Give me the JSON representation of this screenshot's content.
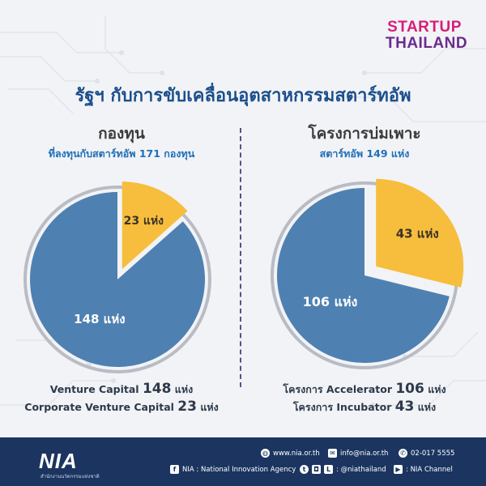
{
  "brand": {
    "logo_line1": "STARTUP",
    "logo_line2": "THAILAND"
  },
  "title": "รัฐฯ กับการขับเคลื่อนอุตสาหกรรมสตาร์ทอัพ",
  "colors": {
    "title": "#1c4f8c",
    "pie_main": "#4f80b2",
    "pie_slice": "#f7bd3c",
    "ring": "#b9bcc4",
    "footer_bg": "#1b3560"
  },
  "chart_data": [
    {
      "type": "pie",
      "title": "กองทุน",
      "subtitle": "ที่ลงทุนกับสตาร์ทอัพ 171 กองทุน",
      "slices": [
        {
          "label": "148 แห่ง",
          "value": 148
        },
        {
          "label": "23 แห่ง",
          "value": 23
        }
      ],
      "legend": [
        {
          "name": "Venture Capital",
          "value": "148",
          "unit": "แห่ง"
        },
        {
          "name": "Corporate Venture Capital",
          "value": "23",
          "unit": "แห่ง"
        }
      ]
    },
    {
      "type": "pie",
      "title": "โครงการบ่มเพาะ",
      "subtitle": "สตาร์ทอัพ 149 แห่ง",
      "slices": [
        {
          "label": "106 แห่ง",
          "value": 106
        },
        {
          "label": "43 แห่ง",
          "value": 43
        }
      ],
      "legend": [
        {
          "name": "โครงการ Accelerator",
          "value": "106",
          "unit": "แห่ง"
        },
        {
          "name": "โครงการ Incubator",
          "value": "43",
          "unit": "แห่ง"
        }
      ]
    }
  ],
  "footer": {
    "logo": "NIA",
    "logo_sub": "สำนักงานนวัตกรรมแห่งชาติ",
    "website": "www.nia.or.th",
    "email": "info@nia.or.th",
    "phone": "02-017 5555",
    "facebook": "NIA : National Innovation Agency",
    "social_handle": ": @niathailand",
    "youtube": ": NIA Channel"
  }
}
